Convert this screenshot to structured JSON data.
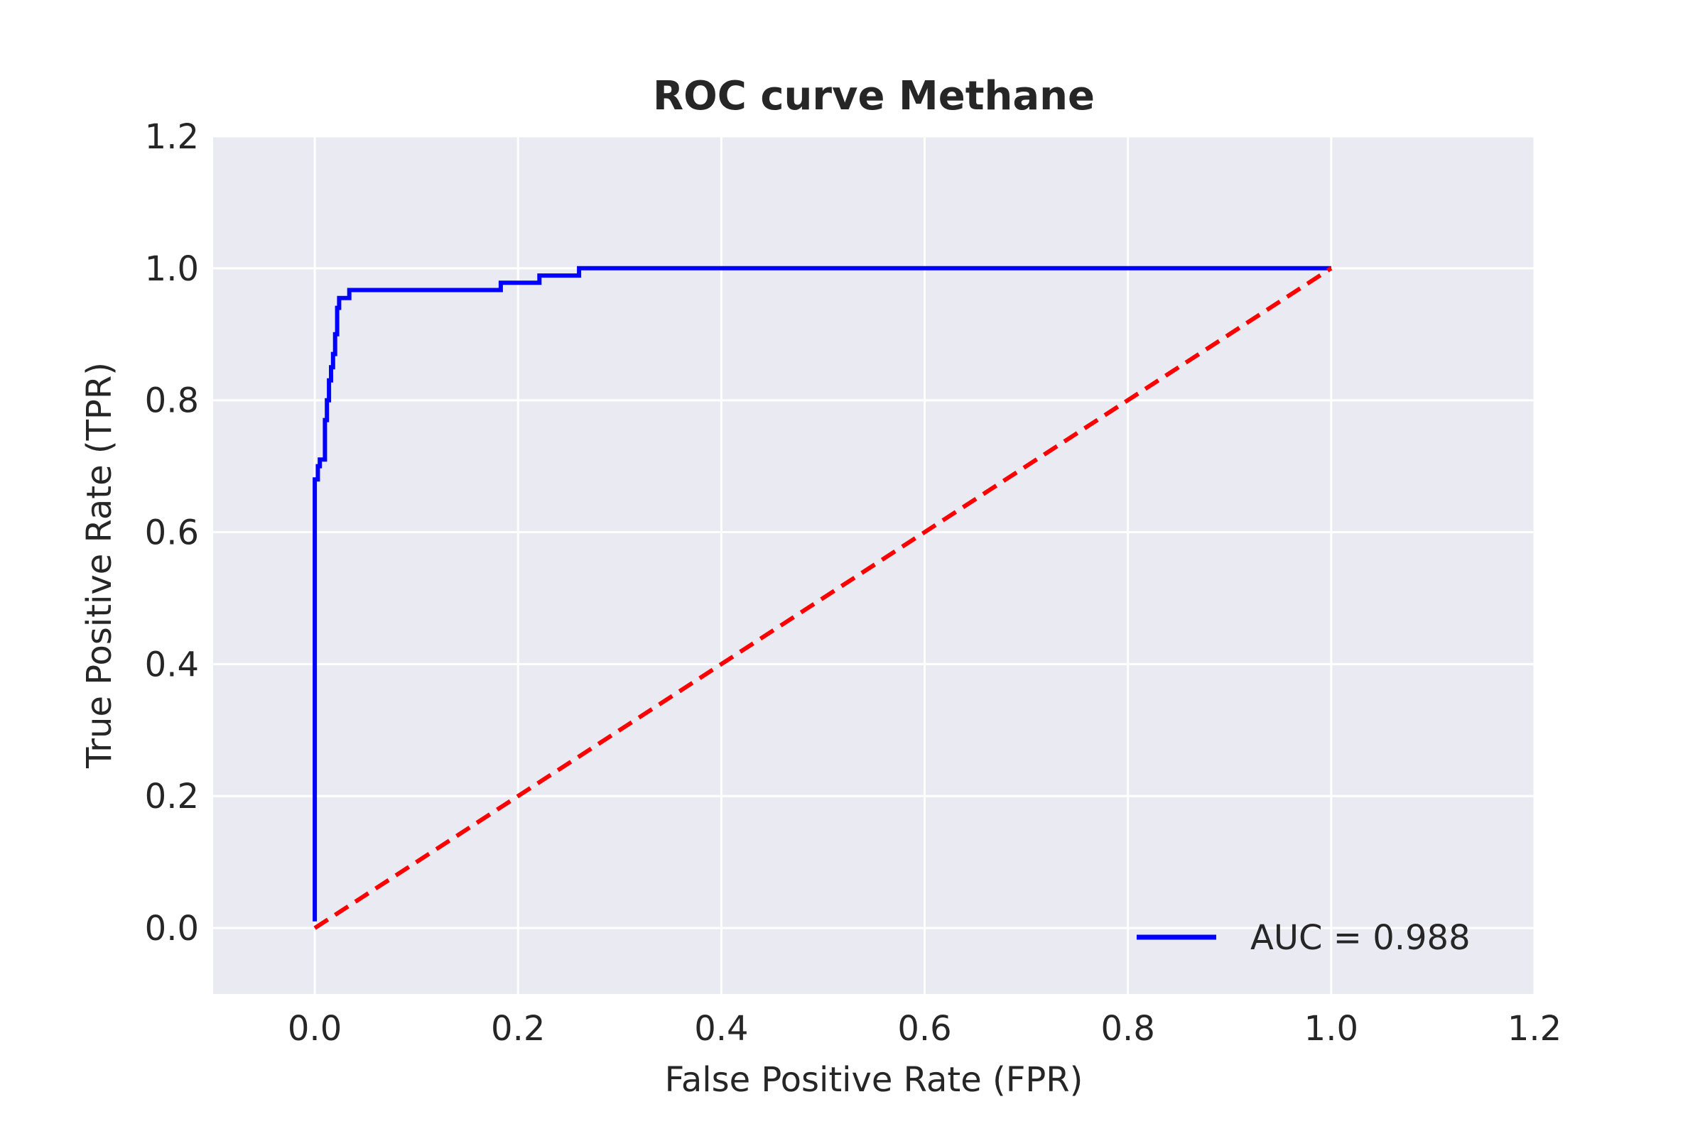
{
  "chart_data": {
    "type": "line",
    "title": "ROC curve Methane",
    "xlabel": "False Positive Rate (FPR)",
    "ylabel": "True Positive Rate (TPR)",
    "xlim": [
      -0.1,
      1.2
    ],
    "ylim": [
      -0.1,
      1.2
    ],
    "xticks": [
      "0.0",
      "0.2",
      "0.4",
      "0.6",
      "0.8",
      "1.0",
      "1.2"
    ],
    "xtick_values": [
      0.0,
      0.2,
      0.4,
      0.6,
      0.8,
      1.0,
      1.2
    ],
    "yticks": [
      "0.0",
      "0.2",
      "0.4",
      "0.6",
      "0.8",
      "1.0",
      "1.2"
    ],
    "ytick_values": [
      0.0,
      0.2,
      0.4,
      0.6,
      0.8,
      1.0,
      1.2
    ],
    "grid": true,
    "background_color": "#eaeaf2",
    "legend_position": "lower-right",
    "series": [
      {
        "name": "AUC = 0.988",
        "color": "#0000ff",
        "style": "solid",
        "x": [
          0.0,
          0.0,
          0.0,
          0.003,
          0.003,
          0.005,
          0.005,
          0.01,
          0.01,
          0.012,
          0.012,
          0.014,
          0.014,
          0.016,
          0.016,
          0.018,
          0.018,
          0.02,
          0.02,
          0.022,
          0.022,
          0.024,
          0.024,
          0.026,
          0.026,
          0.034,
          0.034,
          0.183,
          0.183,
          0.221,
          0.221,
          0.26,
          0.26,
          1.0
        ],
        "y": [
          0.01,
          0.68,
          0.68,
          0.68,
          0.7,
          0.7,
          0.71,
          0.71,
          0.77,
          0.77,
          0.8,
          0.8,
          0.83,
          0.83,
          0.85,
          0.85,
          0.87,
          0.87,
          0.9,
          0.9,
          0.94,
          0.94,
          0.955,
          0.955,
          0.955,
          0.955,
          0.967,
          0.967,
          0.978,
          0.978,
          0.989,
          0.989,
          1.0,
          1.0
        ]
      },
      {
        "color": "#ff0000",
        "style": "dashed",
        "x": [
          0.0,
          1.0
        ],
        "y": [
          0.0,
          1.0
        ]
      }
    ]
  }
}
